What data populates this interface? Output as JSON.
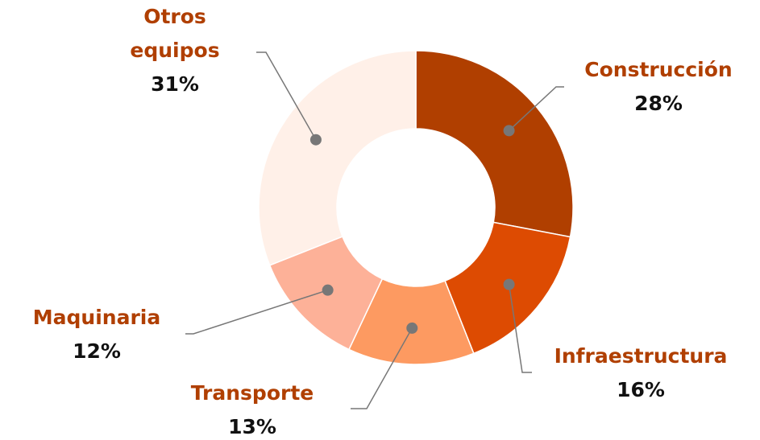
{
  "chart_data": {
    "type": "donut",
    "categories": [
      "Construcción",
      "Infraestructura",
      "Transporte",
      "Maquinaria",
      "Otros equipos"
    ],
    "values": [
      28,
      16,
      13,
      12,
      31
    ],
    "value_labels": [
      "28%",
      "16%",
      "13%",
      "12%",
      "31%"
    ],
    "colors": [
      "#b03f00",
      "#dd4b02",
      "#fd9a61",
      "#fdb198",
      "#fff0e8"
    ]
  }
}
